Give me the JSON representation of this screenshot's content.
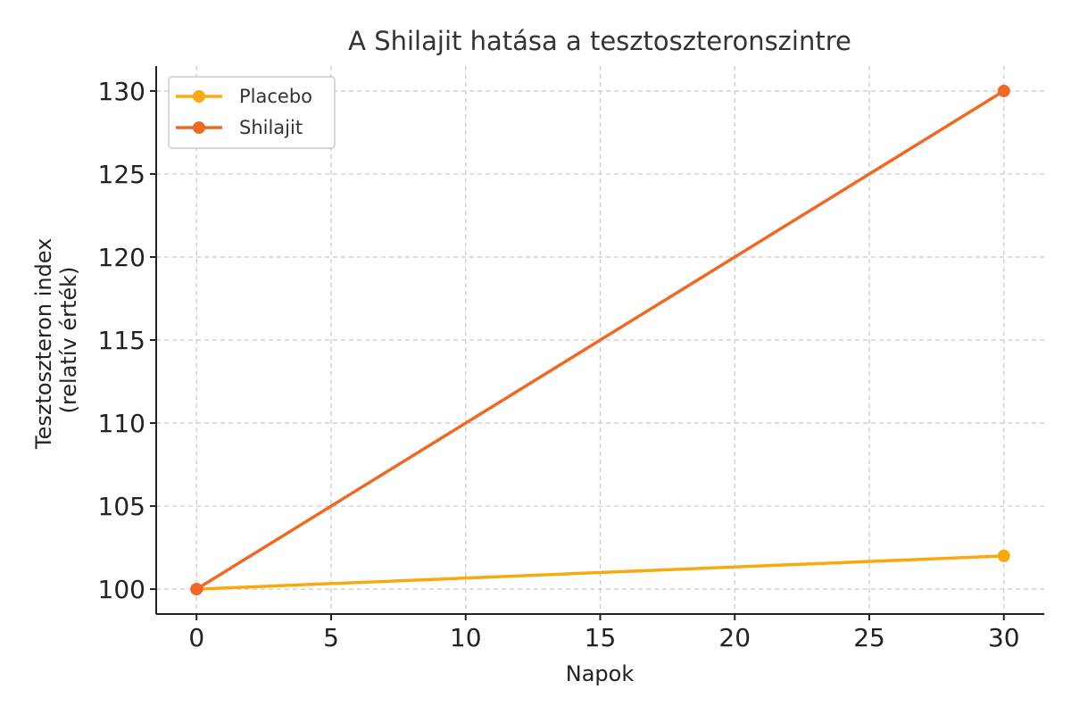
{
  "chart_data": {
    "type": "line",
    "title": "A Shilajit hatása a tesztoszteronszintre",
    "xlabel": "Napok",
    "ylabel_lines": [
      "Tesztoszteron index",
      "(relatív érték)"
    ],
    "xlim": [
      -1.5,
      31.5
    ],
    "ylim": [
      98.5,
      131.5
    ],
    "x_ticks": [
      0,
      5,
      10,
      15,
      20,
      25,
      30
    ],
    "y_ticks": [
      100,
      105,
      110,
      115,
      120,
      125,
      130
    ],
    "grid": true,
    "legend_position": "top-left",
    "series": [
      {
        "name": "Placebo",
        "color": "#F9A90E",
        "x": [
          0,
          30
        ],
        "y": [
          100,
          102
        ]
      },
      {
        "name": "Shilajit",
        "color": "#EE6A24",
        "x": [
          0,
          30
        ],
        "y": [
          100,
          130
        ]
      }
    ]
  }
}
